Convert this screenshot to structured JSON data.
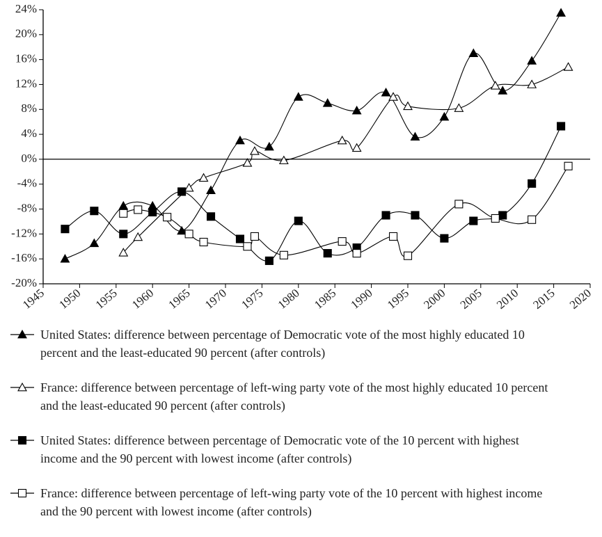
{
  "chart_data": {
    "type": "line",
    "xlim": [
      1945,
      2020
    ],
    "xticks": [
      1945,
      1950,
      1955,
      1960,
      1965,
      1970,
      1975,
      1980,
      1985,
      1990,
      1995,
      2000,
      2005,
      2010,
      2015,
      2020
    ],
    "ylim": [
      -20,
      24
    ],
    "yticks": [
      {
        "value": -20,
        "label": "-20%"
      },
      {
        "value": -16,
        "label": "-16%"
      },
      {
        "value": -12,
        "label": "-12%"
      },
      {
        "value": -8,
        "label": "-8%"
      },
      {
        "value": -4,
        "label": "-4%"
      },
      {
        "value": 0,
        "label": "0%"
      },
      {
        "value": 4,
        "label": "4%"
      },
      {
        "value": 8,
        "label": "8%"
      },
      {
        "value": 12,
        "label": "12%"
      },
      {
        "value": 16,
        "label": "16%"
      },
      {
        "value": 20,
        "label": "20%"
      },
      {
        "value": 24,
        "label": "24%"
      }
    ],
    "series": [
      {
        "name": "United States: difference between percentage of Democratic vote of the most highly educated 10 percent and the least-educated 90 percent (after controls)",
        "color": "#000",
        "marker": "triangle",
        "fill": "#000",
        "x": [
          1948,
          1952,
          1956,
          1960,
          1964,
          1968,
          1972,
          1976,
          1980,
          1984,
          1988,
          1992,
          1996,
          2000,
          2004,
          2008,
          2012,
          2016
        ],
        "values": [
          -16,
          -13.5,
          -7.5,
          -7.5,
          -11.5,
          -5,
          3,
          2,
          10,
          9,
          7.8,
          10.7,
          3.6,
          6.8,
          17,
          11,
          15.8,
          23.5
        ]
      },
      {
        "name": "France: difference between percentage of left-wing party vote of the most highly educated 10 percent and the least-educated 90 percent (after controls)",
        "color": "#000",
        "marker": "triangle",
        "fill": "#fff",
        "x": [
          1956,
          1958,
          1965,
          1967,
          1973,
          1974,
          1978,
          1986,
          1988,
          1993,
          1995,
          2002,
          2007,
          2012,
          2017
        ],
        "values": [
          -15,
          -12.5,
          -4.6,
          -3,
          -0.6,
          1.3,
          -0.2,
          3,
          1.8,
          10,
          8.5,
          8.2,
          11.8,
          12,
          14.8
        ]
      },
      {
        "name": "United States: difference between percentage of Democratic vote of the 10 percent with highest income and the 90 percent with lowest income (after controls)",
        "color": "#000",
        "marker": "square",
        "fill": "#000",
        "x": [
          1948,
          1952,
          1956,
          1960,
          1964,
          1968,
          1972,
          1976,
          1980,
          1984,
          1988,
          1992,
          1996,
          2000,
          2004,
          2008,
          2012,
          2016
        ],
        "values": [
          -11.2,
          -8.3,
          -12,
          -8.5,
          -5.2,
          -9.2,
          -12.8,
          -16.3,
          -9.9,
          -15.1,
          -14.2,
          -9,
          -9,
          -12.7,
          -9.9,
          -9,
          -3.9,
          5.3
        ]
      },
      {
        "name": "France: difference between percentage of left-wing party vote of the 10 percent with highest income and the 90 percent with lowest income (after controls)",
        "color": "#000",
        "marker": "square",
        "fill": "#fff",
        "x": [
          1956,
          1958,
          1962,
          1965,
          1967,
          1973,
          1974,
          1978,
          1986,
          1988,
          1993,
          1995,
          2002,
          2007,
          2012,
          2017
        ],
        "values": [
          -8.7,
          -8.1,
          -9.3,
          -12,
          -13.3,
          -14,
          -12.4,
          -15.4,
          -13.2,
          -15.1,
          -12.4,
          -15.5,
          -7.2,
          -9.5,
          -9.7,
          -1.1
        ]
      }
    ]
  }
}
